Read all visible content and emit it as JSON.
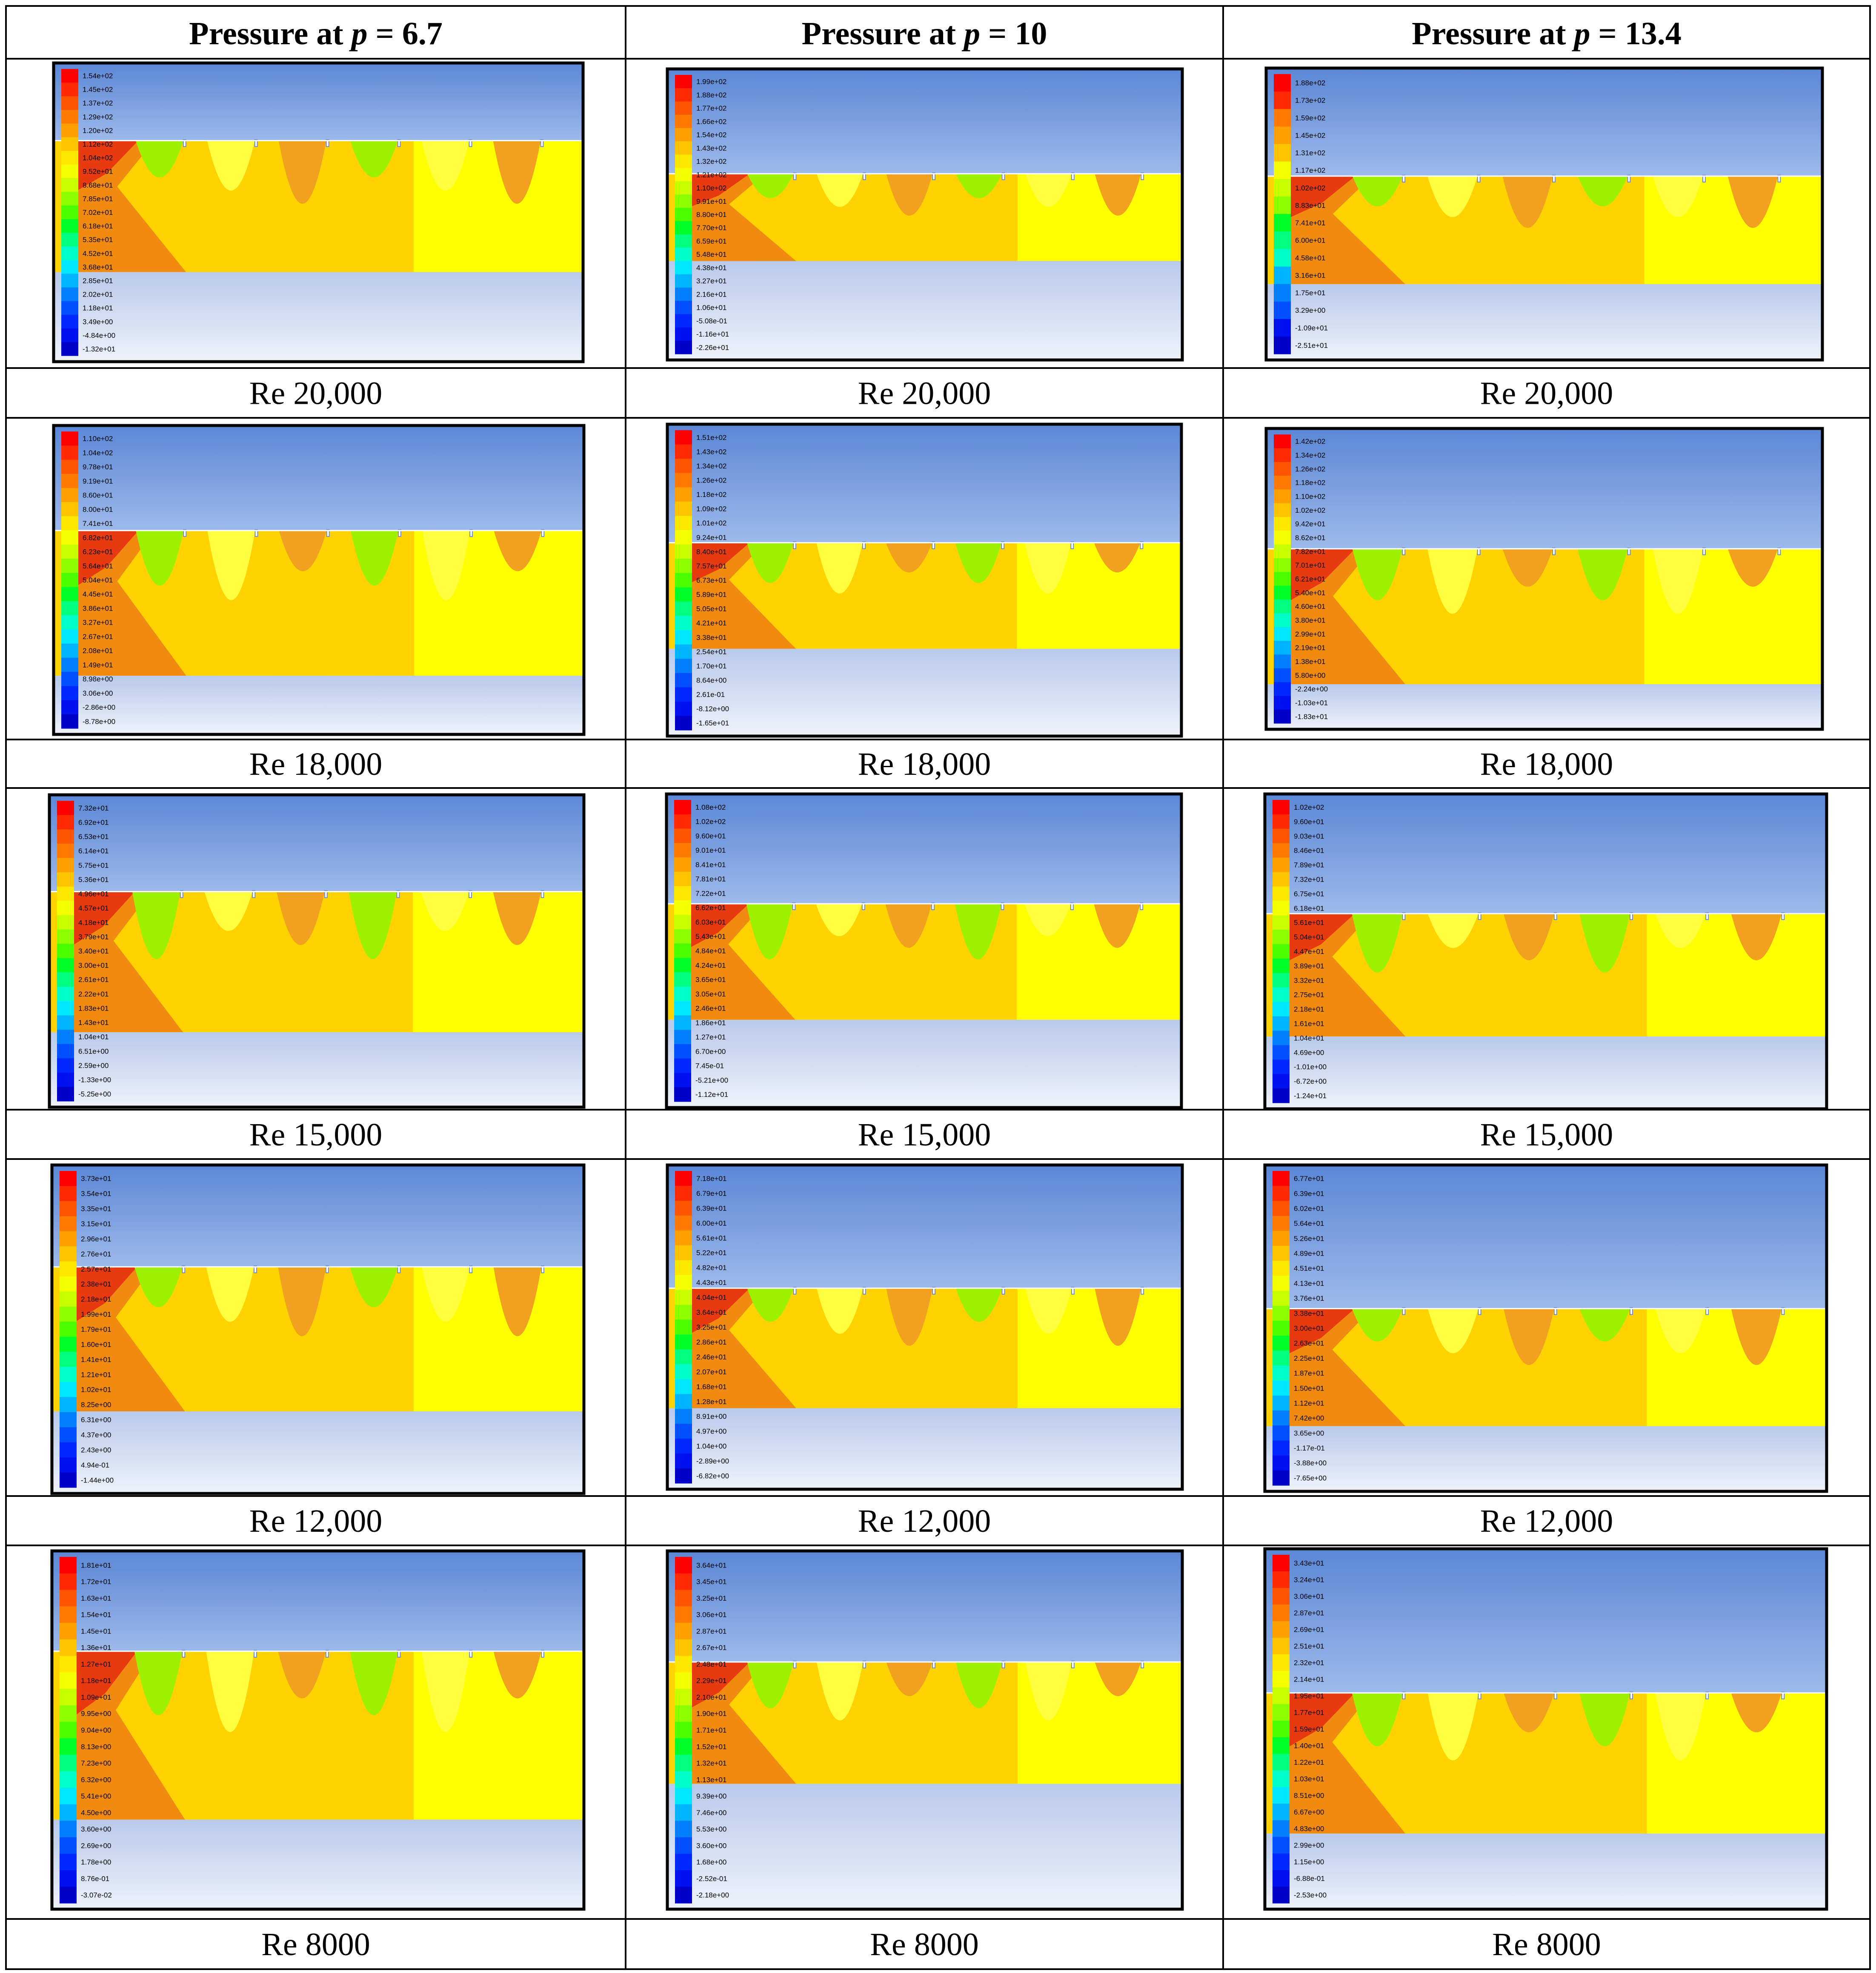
{
  "columns": [
    {
      "label_prefix": "Pressure at ",
      "var": "p",
      "label_suffix": " = 6.7"
    },
    {
      "label_prefix": "Pressure at ",
      "var": "p",
      "label_suffix": " = 10"
    },
    {
      "label_prefix": "Pressure at ",
      "var": "p",
      "label_suffix": " = 13.4"
    }
  ],
  "rows": [
    {
      "caption": "Re 20,000"
    },
    {
      "caption": "Re 18,000"
    },
    {
      "caption": "Re 15,000"
    },
    {
      "caption": "Re 12,000"
    },
    {
      "caption": "Re 8000"
    }
  ],
  "legends": [
    [
      [
        "1.54e+02",
        "1.45e+02",
        "1.37e+02",
        "1.29e+02",
        "1.20e+02",
        "1.12e+02",
        "1.04e+02",
        "9.52e+01",
        "8.68e+01",
        "7.85e+01",
        "7.02e+01",
        "6.18e+01",
        "5.35e+01",
        "4.52e+01",
        "3.68e+01",
        "2.85e+01",
        "2.02e+01",
        "1.18e+01",
        "3.49e+00",
        "-4.84e+00",
        "-1.32e+01"
      ],
      [
        "1.99e+02",
        "1.88e+02",
        "1.77e+02",
        "1.66e+02",
        "1.54e+02",
        "1.43e+02",
        "1.32e+02",
        "1.21e+02",
        "1.10e+02",
        "9.91e+01",
        "8.80e+01",
        "7.70e+01",
        "6.59e+01",
        "5.48e+01",
        "4.38e+01",
        "3.27e+01",
        "2.16e+01",
        "1.06e+01",
        "-5.08e-01",
        "-1.16e+01",
        "-2.26e+01"
      ],
      [
        "1.88e+02",
        "1.73e+02",
        "1.59e+02",
        "1.45e+02",
        "1.31e+02",
        "1.17e+02",
        "1.02e+02",
        "8.83e+01",
        "7.41e+01",
        "6.00e+01",
        "4.58e+01",
        "3.16e+01",
        "1.75e+01",
        "3.29e+00",
        "-1.09e+01",
        "-2.51e+01"
      ]
    ],
    [
      [
        "1.10e+02",
        "1.04e+02",
        "9.78e+01",
        "9.19e+01",
        "8.60e+01",
        "8.00e+01",
        "7.41e+01",
        "6.82e+01",
        "6.23e+01",
        "5.64e+01",
        "5.04e+01",
        "4.45e+01",
        "3.86e+01",
        "3.27e+01",
        "2.67e+01",
        "2.08e+01",
        "1.49e+01",
        "8.98e+00",
        "3.06e+00",
        "-2.86e+00",
        "-8.78e+00"
      ],
      [
        "1.51e+02",
        "1.43e+02",
        "1.34e+02",
        "1.26e+02",
        "1.18e+02",
        "1.09e+02",
        "1.01e+02",
        "9.24e+01",
        "8.40e+01",
        "7.57e+01",
        "6.73e+01",
        "5.89e+01",
        "5.05e+01",
        "4.21e+01",
        "3.38e+01",
        "2.54e+01",
        "1.70e+01",
        "8.64e+00",
        "2.61e-01",
        "-8.12e+00",
        "-1.65e+01"
      ],
      [
        "1.42e+02",
        "1.34e+02",
        "1.26e+02",
        "1.18e+02",
        "1.10e+02",
        "1.02e+02",
        "9.42e+01",
        "8.62e+01",
        "7.82e+01",
        "7.01e+01",
        "6.21e+01",
        "5.40e+01",
        "4.60e+01",
        "3.80e+01",
        "2.99e+01",
        "2.19e+01",
        "1.38e+01",
        "5.80e+00",
        "-2.24e+00",
        "-1.03e+01",
        "-1.83e+01"
      ]
    ],
    [
      [
        "7.32e+01",
        "6.92e+01",
        "6.53e+01",
        "6.14e+01",
        "5.75e+01",
        "5.36e+01",
        "4.96e+01",
        "4.57e+01",
        "4.18e+01",
        "3.79e+01",
        "3.40e+01",
        "3.00e+01",
        "2.61e+01",
        "2.22e+01",
        "1.83e+01",
        "1.43e+01",
        "1.04e+01",
        "6.51e+00",
        "2.59e+00",
        "-1.33e+00",
        "-5.25e+00"
      ],
      [
        "1.08e+02",
        "1.02e+02",
        "9.60e+01",
        "9.01e+01",
        "8.41e+01",
        "7.81e+01",
        "7.22e+01",
        "6.62e+01",
        "6.03e+01",
        "5.43e+01",
        "4.84e+01",
        "4.24e+01",
        "3.65e+01",
        "3.05e+01",
        "2.46e+01",
        "1.86e+01",
        "1.27e+01",
        "6.70e+00",
        "7.45e-01",
        "-5.21e+00",
        "-1.12e+01"
      ],
      [
        "1.02e+02",
        "9.60e+01",
        "9.03e+01",
        "8.46e+01",
        "7.89e+01",
        "7.32e+01",
        "6.75e+01",
        "6.18e+01",
        "5.61e+01",
        "5.04e+01",
        "4.47e+01",
        "3.89e+01",
        "3.32e+01",
        "2.75e+01",
        "2.18e+01",
        "1.61e+01",
        "1.04e+01",
        "4.69e+00",
        "-1.01e+00",
        "-6.72e+00",
        "-1.24e+01"
      ]
    ],
    [
      [
        "3.73e+01",
        "3.54e+01",
        "3.35e+01",
        "3.15e+01",
        "2.96e+01",
        "2.76e+01",
        "2.57e+01",
        "2.38e+01",
        "2.18e+01",
        "1.99e+01",
        "1.79e+01",
        "1.60e+01",
        "1.41e+01",
        "1.21e+01",
        "1.02e+01",
        "8.25e+00",
        "6.31e+00",
        "4.37e+00",
        "2.43e+00",
        "4.94e-01",
        "-1.44e+00"
      ],
      [
        "7.18e+01",
        "6.79e+01",
        "6.39e+01",
        "6.00e+01",
        "5.61e+01",
        "5.22e+01",
        "4.82e+01",
        "4.43e+01",
        "4.04e+01",
        "3.64e+01",
        "3.25e+01",
        "2.86e+01",
        "2.46e+01",
        "2.07e+01",
        "1.68e+01",
        "1.28e+01",
        "8.91e+00",
        "4.97e+00",
        "1.04e+00",
        "-2.89e+00",
        "-6.82e+00"
      ],
      [
        "6.77e+01",
        "6.39e+01",
        "6.02e+01",
        "5.64e+01",
        "5.26e+01",
        "4.89e+01",
        "4.51e+01",
        "4.13e+01",
        "3.76e+01",
        "3.38e+01",
        "3.00e+01",
        "2.63e+01",
        "2.25e+01",
        "1.87e+01",
        "1.50e+01",
        "1.12e+01",
        "7.42e+00",
        "3.65e+00",
        "-1.17e-01",
        "-3.88e+00",
        "-7.65e+00"
      ]
    ],
    [
      [
        "1.81e+01",
        "1.72e+01",
        "1.63e+01",
        "1.54e+01",
        "1.45e+01",
        "1.36e+01",
        "1.27e+01",
        "1.18e+01",
        "1.09e+01",
        "9.95e+00",
        "9.04e+00",
        "8.13e+00",
        "7.23e+00",
        "6.32e+00",
        "5.41e+00",
        "4.50e+00",
        "3.60e+00",
        "2.69e+00",
        "1.78e+00",
        "8.76e-01",
        "-3.07e-02"
      ],
      [
        "3.64e+01",
        "3.45e+01",
        "3.25e+01",
        "3.06e+01",
        "2.87e+01",
        "2.67e+01",
        "2.48e+01",
        "2.29e+01",
        "2.10e+01",
        "1.90e+01",
        "1.71e+01",
        "1.52e+01",
        "1.32e+01",
        "1.13e+01",
        "9.39e+00",
        "7.46e+00",
        "5.53e+00",
        "3.60e+00",
        "1.68e+00",
        "-2.52e-01",
        "-2.18e+00"
      ],
      [
        "3.43e+01",
        "3.24e+01",
        "3.06e+01",
        "2.87e+01",
        "2.69e+01",
        "2.51e+01",
        "2.32e+01",
        "2.14e+01",
        "1.95e+01",
        "1.77e+01",
        "1.59e+01",
        "1.40e+01",
        "1.22e+01",
        "1.03e+01",
        "8.51e+00",
        "6.67e+00",
        "4.83e+00",
        "2.99e+00",
        "1.15e+00",
        "-6.88e-01",
        "-2.53e+00"
      ]
    ]
  ]
}
